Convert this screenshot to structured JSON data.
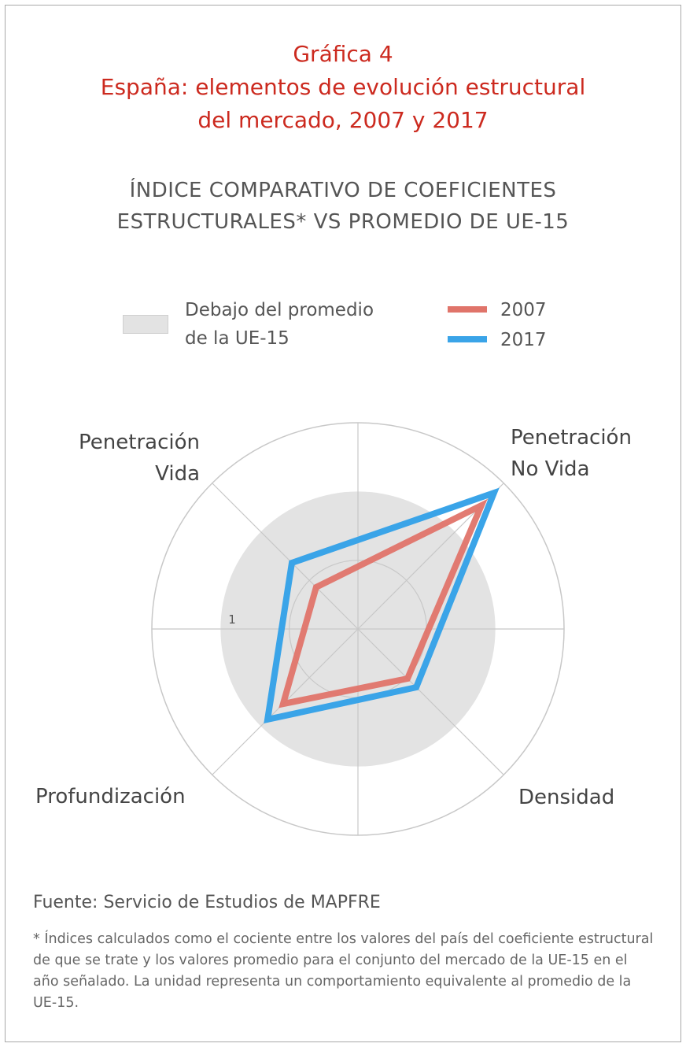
{
  "title": {
    "line1": "Gráfica 4",
    "line2": "España: elementos de evolución estructural",
    "line3": "del mercado, 2007 y 2017"
  },
  "subtitle": {
    "line1": "ÍNDICE COMPARATIVO DE COEFICIENTES",
    "line2": "ESTRUCTURALES* VS PROMEDIO DE UE-15"
  },
  "legend": {
    "area_label_line1": "Debajo del promedio",
    "area_label_line2": "de la UE-15",
    "series_2007": "2007",
    "series_2017": "2017"
  },
  "colors": {
    "title": "#cc2a1f",
    "series_2007": "#e0746a",
    "series_2017": "#3aa4e8",
    "below_average_fill": "#e3e3e3",
    "grid": "#c8c8c8"
  },
  "chart_data": {
    "type": "radar",
    "axes": [
      "Penetración Vida",
      "Penetración No Vida",
      "Densidad",
      "Profundización"
    ],
    "axis_labels": {
      "vida_line1": "Penetración",
      "vida_line2": "Vida",
      "novida_line1": "Penetración",
      "novida_line2": "No Vida",
      "densidad": "Densidad",
      "profundizacion": "Profundización"
    },
    "reference_label": "1",
    "reference_value": 1,
    "rings": [
      0.5,
      1,
      1.5
    ],
    "range": [
      0,
      1.5
    ],
    "series": [
      {
        "name": "2007",
        "values": [
          0.43,
          1.27,
          0.51,
          0.77
        ]
      },
      {
        "name": "2017",
        "values": [
          0.68,
          1.4,
          0.6,
          0.93
        ]
      }
    ]
  },
  "source": "Fuente: Servicio de Estudios de MAPFRE",
  "footnote": "* Índices calculados como el cociente entre los valores del país del coeficiente estructural de que se trate y los valores promedio para el conjunto del mercado de la UE-15 en el año señalado. La unidad representa un comportamiento equivalente al promedio de la UE-15."
}
